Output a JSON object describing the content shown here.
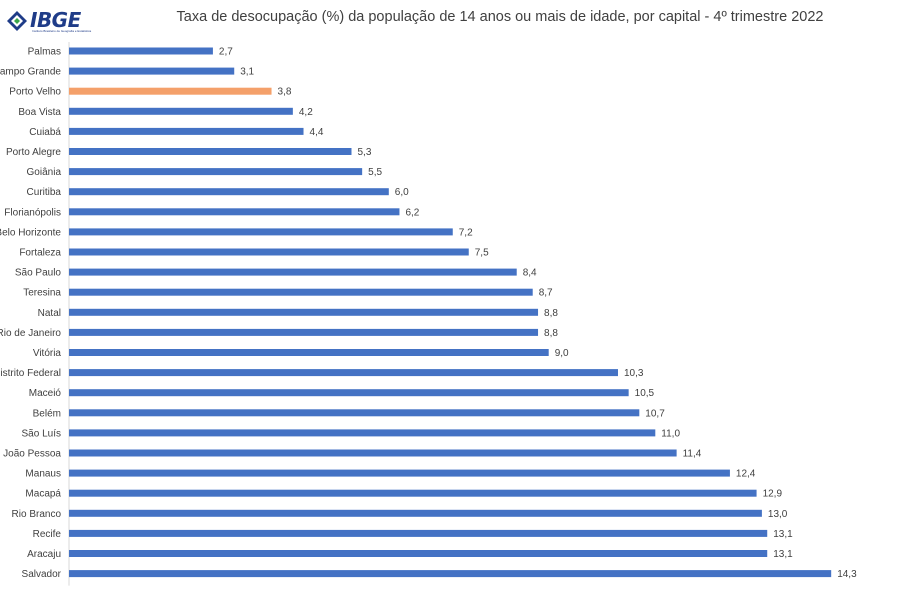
{
  "logo": {
    "text": "IBGE",
    "subtitle": "Instituto Brasileiro de Geografia e Estatística"
  },
  "colors": {
    "bar": "#4472c4",
    "highlight": "#f4a06a",
    "text": "#404040",
    "axis": "#d9d9d9"
  },
  "chart_data": {
    "type": "bar",
    "orientation": "horizontal",
    "title": "Taxa de desocupação (%) da população de 14 anos ou mais de idade, por capital - 4º trimestre 2022",
    "xlabel": "",
    "ylabel": "",
    "grid": false,
    "legend": "none",
    "highlight": "Porto Velho",
    "categories": [
      "Palmas",
      "Campo Grande",
      "Porto Velho",
      "Boa Vista",
      "Cuiabá",
      "Porto Alegre",
      "Goiânia",
      "Curitiba",
      "Florianópolis",
      "Belo Horizonte",
      "Fortaleza",
      "São Paulo",
      "Teresina",
      "Natal",
      "Rio de Janeiro",
      "Vitória",
      "Distrito Federal",
      "Maceió",
      "Belém",
      "São Luís",
      "João Pessoa",
      "Manaus",
      "Macapá",
      "Rio Branco",
      "Recife",
      "Aracaju",
      "Salvador"
    ],
    "values": [
      2.7,
      3.1,
      3.8,
      4.2,
      4.4,
      5.3,
      5.5,
      6.0,
      6.2,
      7.2,
      7.5,
      8.4,
      8.7,
      8.8,
      8.8,
      9.0,
      10.3,
      10.5,
      10.7,
      11.0,
      11.4,
      12.4,
      12.9,
      13.0,
      13.1,
      13.1,
      14.3
    ],
    "value_labels": [
      "2,7",
      "3,1",
      "3,8",
      "4,2",
      "4,4",
      "5,3",
      "5,5",
      "6,0",
      "6,2",
      "7,2",
      "7,5",
      "8,4",
      "8,7",
      "8,8",
      "8,8",
      "9,0",
      "10,3",
      "10,5",
      "10,7",
      "11,0",
      "11,4",
      "12,4",
      "12,9",
      "13,0",
      "13,1",
      "13,1",
      "14,3"
    ]
  }
}
